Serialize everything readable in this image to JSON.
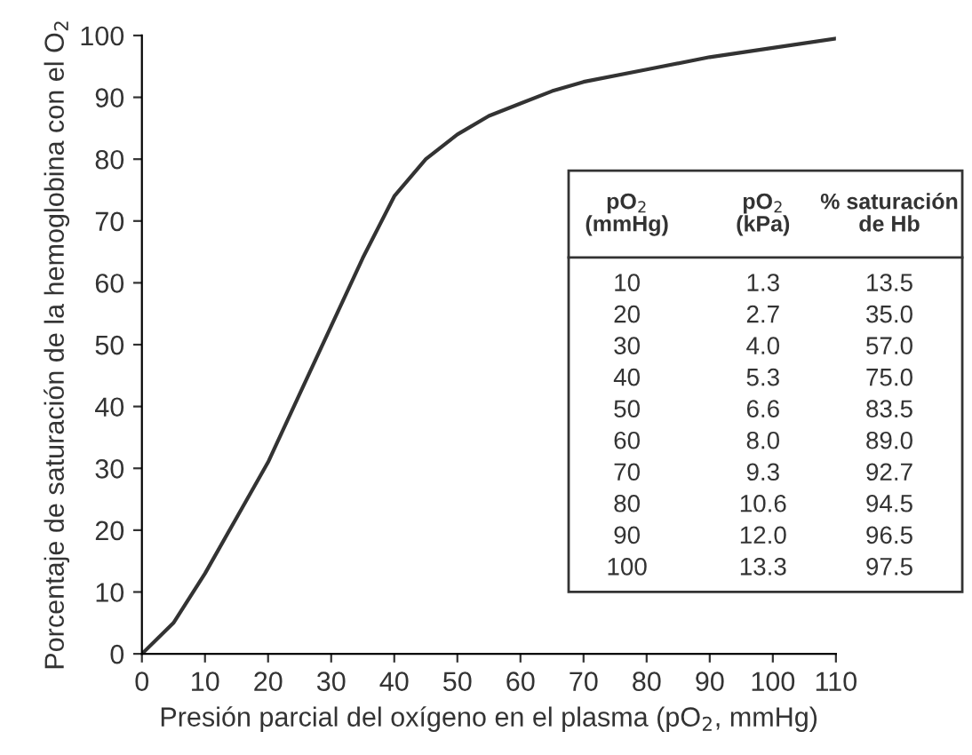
{
  "chart_data": {
    "type": "line",
    "xlabel": "Presión parcial del oxígeno en el plasma (pO$_{2}$, mmHg)",
    "ylabel": "Porcentaje de saturación de la hemoglobina con el O$_{2}$",
    "x": [
      0,
      5,
      10,
      15,
      20,
      25,
      30,
      35,
      40,
      45,
      50,
      55,
      60,
      65,
      70,
      80,
      90,
      100,
      110
    ],
    "series": [
      {
        "color": "#333333",
        "values": [
          0,
          5,
          13,
          22,
          31,
          42,
          53,
          64,
          74,
          80,
          84,
          87,
          89,
          91,
          92.5,
          94.5,
          96.5,
          98,
          99.5
        ]
      }
    ],
    "xlim": [
      0,
      110
    ],
    "ylim": [
      0,
      100
    ],
    "xticks": [
      0,
      10,
      20,
      30,
      40,
      50,
      60,
      70,
      80,
      90,
      100,
      110
    ],
    "yticks": [
      0,
      10,
      20,
      30,
      40,
      50,
      60,
      70,
      80,
      90,
      100
    ],
    "grid": false,
    "legend": false,
    "marker": "none",
    "line_style": "solid",
    "annotations": [
      "pO$_{2}$\n(mmHg)",
      "pO$_{2}$\n(kPa)",
      "% saturación\nde Hb",
      "10",
      "1.3",
      "13.5",
      "20",
      "2.7",
      "35.0",
      "30",
      "4.0",
      "57.0",
      "40",
      "5.3",
      "75.0",
      "50",
      "6.6",
      "83.5",
      "60",
      "8.0",
      "89.0",
      "70",
      "9.3",
      "92.7",
      "80",
      "10.6",
      "94.5",
      "90",
      "12.0",
      "96.5",
      "100",
      "13.3",
      "97.5"
    ]
  }
}
